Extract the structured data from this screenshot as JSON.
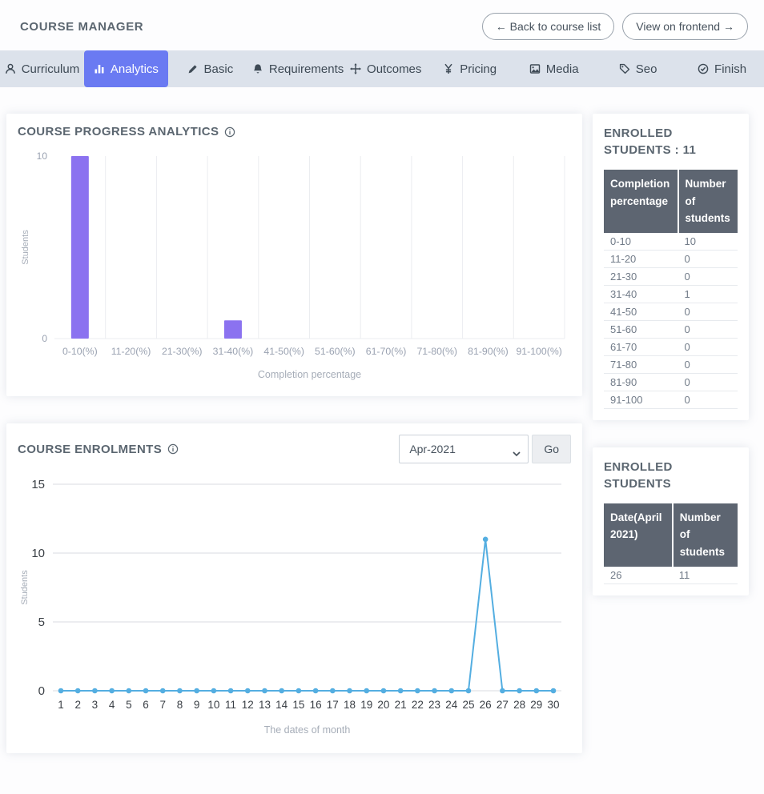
{
  "header": {
    "title": "COURSE MANAGER",
    "back_button": "← Back to course list",
    "frontend_button": "View on frontend →"
  },
  "tabs": [
    {
      "label": "Curriculum",
      "icon": "user-icon",
      "active": false
    },
    {
      "label": "Analytics",
      "icon": "bar-chart-icon",
      "active": true
    },
    {
      "label": "Basic",
      "icon": "pen-icon",
      "active": false
    },
    {
      "label": "Requirements",
      "icon": "bell-icon",
      "active": false
    },
    {
      "label": "Outcomes",
      "icon": "move-icon",
      "active": false
    },
    {
      "label": "Pricing",
      "icon": "yen-icon",
      "active": false
    },
    {
      "label": "Media",
      "icon": "image-icon",
      "active": false
    },
    {
      "label": "Seo",
      "icon": "tag-icon",
      "active": false
    },
    {
      "label": "Finish",
      "icon": "check-circle-icon",
      "active": false
    }
  ],
  "progress_card": {
    "title": "COURSE PROGRESS ANALYTICS"
  },
  "enrolments_card": {
    "title": "COURSE ENROLMENTS",
    "month_selected": "Apr-2021",
    "go_label": "Go"
  },
  "sidebar": {
    "card1": {
      "title": "ENROLLED STUDENTS : 11",
      "headers": [
        "Completion percentage",
        "Number of students"
      ],
      "rows": [
        [
          "0-10",
          "10"
        ],
        [
          "11-20",
          "0"
        ],
        [
          "21-30",
          "0"
        ],
        [
          "31-40",
          "1"
        ],
        [
          "41-50",
          "0"
        ],
        [
          "51-60",
          "0"
        ],
        [
          "61-70",
          "0"
        ],
        [
          "71-80",
          "0"
        ],
        [
          "81-90",
          "0"
        ],
        [
          "91-100",
          "0"
        ]
      ]
    },
    "card2": {
      "title": "ENROLLED STUDENTS",
      "headers": [
        "Date(April 2021)",
        "Number of students"
      ],
      "rows": [
        [
          "26",
          "11"
        ]
      ]
    }
  },
  "chart_data": [
    {
      "type": "bar",
      "title": "COURSE PROGRESS ANALYTICS",
      "categories": [
        "0-10(%)",
        "11-20(%)",
        "21-30(%)",
        "31-40(%)",
        "41-50(%)",
        "51-60(%)",
        "61-70(%)",
        "71-80(%)",
        "81-90(%)",
        "91-100(%)"
      ],
      "values": [
        10,
        0,
        0,
        1,
        0,
        0,
        0,
        0,
        0,
        0
      ],
      "xlabel": "Completion percentage",
      "ylabel": "Students",
      "ylim": [
        0,
        10
      ],
      "yticks": [
        0,
        10
      ],
      "bar_color": "#8b72f0",
      "grid": "vertical",
      "legend": "none"
    },
    {
      "type": "line",
      "title": "COURSE ENROLMENTS",
      "x": [
        1,
        2,
        3,
        4,
        5,
        6,
        7,
        8,
        9,
        10,
        11,
        12,
        13,
        14,
        15,
        16,
        17,
        18,
        19,
        20,
        21,
        22,
        23,
        24,
        25,
        26,
        27,
        28,
        29,
        30
      ],
      "values": [
        0,
        0,
        0,
        0,
        0,
        0,
        0,
        0,
        0,
        0,
        0,
        0,
        0,
        0,
        0,
        0,
        0,
        0,
        0,
        0,
        0,
        0,
        0,
        0,
        0,
        11,
        0,
        0,
        0,
        0
      ],
      "xlabel": "The dates of month",
      "ylabel": "Students",
      "ylim": [
        0,
        15
      ],
      "yticks": [
        0,
        5,
        10,
        15
      ],
      "line_color": "#54aee1",
      "grid": "horizontal",
      "legend": "none"
    }
  ]
}
